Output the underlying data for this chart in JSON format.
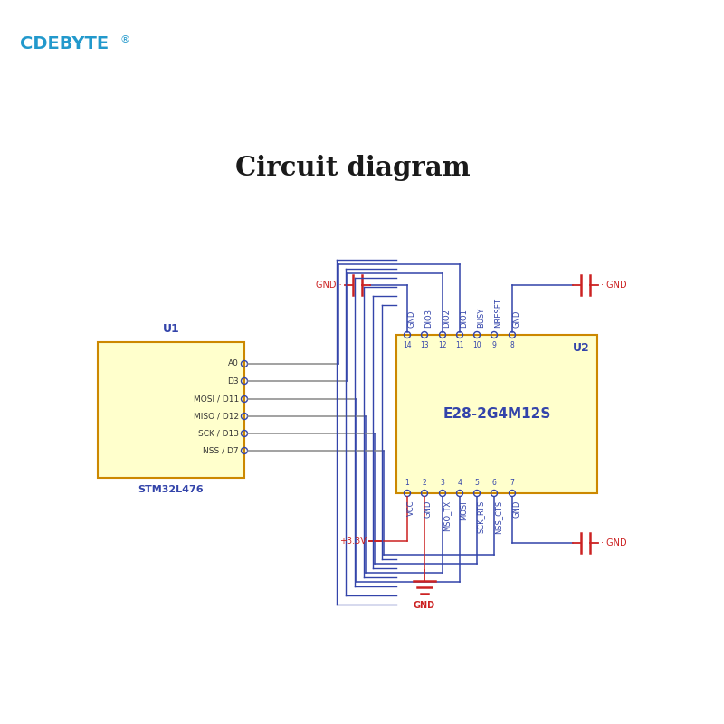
{
  "bg_color": "#ffffff",
  "cdebyte_color": "#2299cc",
  "title": "Circuit diagram",
  "title_color": "#1a1a1a",
  "box_fill": "#ffffcc",
  "box_edge": "#cc8800",
  "wire_color": "#3344aa",
  "red_color": "#cc2222",
  "u1_label": "U1",
  "u1_name": "STM32L476",
  "u1_pins": [
    "A0",
    "D3",
    "MOSI / D11",
    "MISO / D12",
    "SCK / D13",
    "NSS / D7"
  ],
  "u2_label": "U2",
  "u2_name": "E28-2G4M12S",
  "u2_top_pins": [
    "GND",
    "DIO3",
    "DIO2",
    "DIO1",
    "BUSY",
    "NRESET",
    "GND"
  ],
  "u2_top_nums": [
    "14",
    "13",
    "12",
    "11",
    "10",
    "9",
    "8"
  ],
  "u2_bot_pins": [
    "VCC",
    "GND",
    "MSO_TX",
    "MOSI",
    "SCK_RTS",
    "NSS_CTS",
    "GND"
  ],
  "u2_bot_nums": [
    "1",
    "2",
    "3",
    "4",
    "5",
    "6",
    "7"
  ],
  "pin_wire_color": "#888888"
}
